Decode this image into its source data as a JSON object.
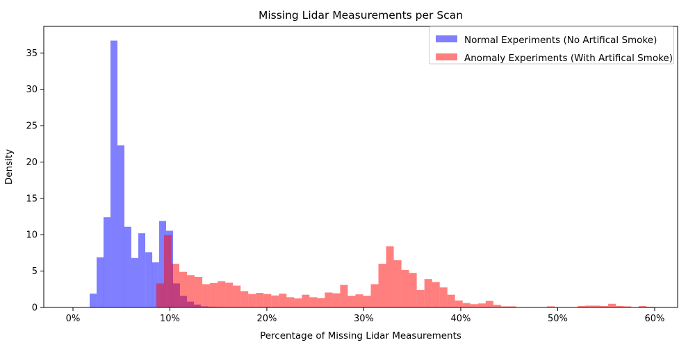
{
  "chart": {
    "title": "Missing Lidar Measurements per Scan",
    "xlabel": "Percentage of Missing Lidar Measurements",
    "ylabel": "Density",
    "legend": {
      "position": "upper right",
      "items": [
        {
          "key": "normal",
          "label": "Normal Experiments (No Artifical Smoke)",
          "swatch_color": "#7f7fff"
        },
        {
          "key": "anomaly",
          "label": "Anomaly Experiments (With Artifical Smoke)",
          "swatch_color": "#ff7f7f"
        }
      ]
    }
  },
  "chart_data": {
    "type": "bar",
    "subtype": "overlapping-density-histograms",
    "title": "Missing Lidar Measurements per Scan",
    "xlabel": "Percentage of Missing Lidar Measurements",
    "ylabel": "Density",
    "xlim": [
      -3.01,
      62.37
    ],
    "ylim": [
      0,
      38.66
    ],
    "grid": false,
    "legend_position": "upper right",
    "x_ticks": [
      {
        "value": 0,
        "label": "0%"
      },
      {
        "value": 10,
        "label": "10%"
      },
      {
        "value": 20,
        "label": "20%"
      },
      {
        "value": 30,
        "label": "30%"
      },
      {
        "value": 40,
        "label": "40%"
      },
      {
        "value": 50,
        "label": "50%"
      },
      {
        "value": 60,
        "label": "60%"
      }
    ],
    "y_ticks": [
      0,
      5,
      10,
      15,
      20,
      25,
      30,
      35
    ],
    "series": [
      {
        "key": "normal",
        "name": "Normal Experiments (No Artifical Smoke)",
        "color": "#0000ff",
        "alpha": 0.5,
        "bin_width_pct": 0.717,
        "bars": [
          [
            1.72,
            1.9
          ],
          [
            2.44,
            6.9
          ],
          [
            3.15,
            12.4
          ],
          [
            3.87,
            36.7
          ],
          [
            4.59,
            22.3
          ],
          [
            5.3,
            11.1
          ],
          [
            6.02,
            6.8
          ],
          [
            6.74,
            10.2
          ],
          [
            7.46,
            7.6
          ],
          [
            8.17,
            6.2
          ],
          [
            8.89,
            11.9
          ],
          [
            9.61,
            10.55
          ],
          [
            10.32,
            3.3
          ],
          [
            11.04,
            1.6
          ],
          [
            11.76,
            0.8
          ],
          [
            12.47,
            0.4
          ],
          [
            13.19,
            0.15
          ],
          [
            13.91,
            0.1
          ],
          [
            14.62,
            0.07
          ],
          [
            15.34,
            0.05
          ]
        ]
      },
      {
        "key": "anomaly",
        "name": "Anomaly Experiments (With Artifical Smoke)",
        "color": "#ff0000",
        "alpha": 0.5,
        "bin_width_pct": 0.79,
        "bars": [
          [
            8.6,
            3.3
          ],
          [
            9.39,
            9.95
          ],
          [
            10.18,
            6.0
          ],
          [
            10.97,
            4.9
          ],
          [
            11.76,
            4.45
          ],
          [
            12.55,
            4.2
          ],
          [
            13.34,
            3.2
          ],
          [
            14.13,
            3.35
          ],
          [
            14.92,
            3.6
          ],
          [
            15.71,
            3.4
          ],
          [
            16.5,
            3.0
          ],
          [
            17.29,
            2.25
          ],
          [
            18.08,
            1.85
          ],
          [
            18.87,
            2.0
          ],
          [
            19.66,
            1.85
          ],
          [
            20.45,
            1.65
          ],
          [
            21.24,
            1.9
          ],
          [
            22.03,
            1.4
          ],
          [
            22.82,
            1.25
          ],
          [
            23.61,
            1.75
          ],
          [
            24.4,
            1.4
          ],
          [
            25.19,
            1.3
          ],
          [
            25.98,
            2.05
          ],
          [
            26.77,
            1.95
          ],
          [
            27.56,
            3.1
          ],
          [
            28.35,
            1.6
          ],
          [
            29.14,
            1.8
          ],
          [
            29.93,
            1.6
          ],
          [
            30.72,
            3.2
          ],
          [
            31.51,
            6.0
          ],
          [
            32.3,
            8.4
          ],
          [
            33.09,
            6.5
          ],
          [
            33.88,
            5.15
          ],
          [
            34.67,
            4.75
          ],
          [
            35.46,
            2.4
          ],
          [
            36.25,
            3.9
          ],
          [
            37.04,
            3.5
          ],
          [
            37.83,
            2.75
          ],
          [
            38.62,
            1.75
          ],
          [
            39.41,
            0.95
          ],
          [
            40.2,
            0.6
          ],
          [
            40.99,
            0.45
          ],
          [
            41.78,
            0.55
          ],
          [
            42.57,
            0.9
          ],
          [
            43.36,
            0.35
          ],
          [
            44.15,
            0.15
          ],
          [
            44.94,
            0.15
          ],
          [
            48.89,
            0.15
          ],
          [
            52.05,
            0.2
          ],
          [
            52.84,
            0.25
          ],
          [
            53.63,
            0.25
          ],
          [
            54.42,
            0.2
          ],
          [
            55.21,
            0.5
          ],
          [
            56.0,
            0.2
          ],
          [
            56.79,
            0.15
          ],
          [
            58.37,
            0.2
          ],
          [
            59.16,
            0.1
          ]
        ]
      }
    ]
  }
}
